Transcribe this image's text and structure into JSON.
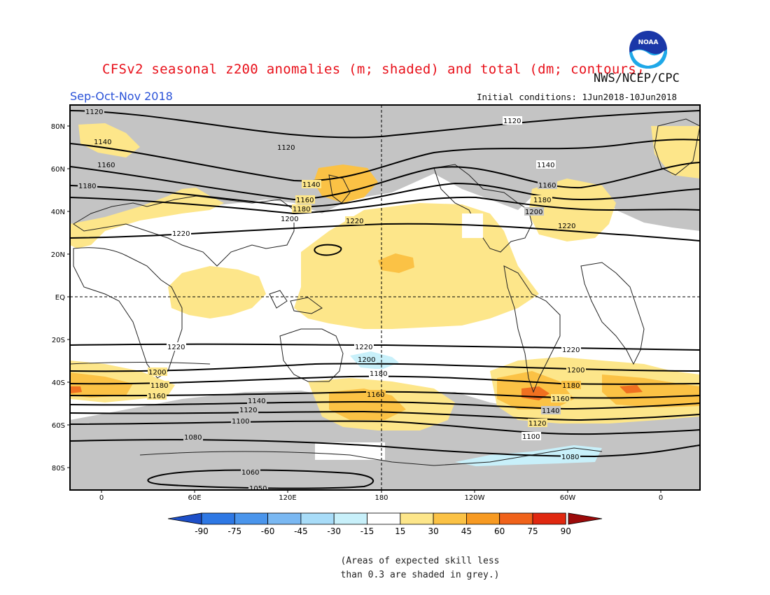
{
  "header": {
    "title": "CFSv2 seasonal z200 anomalies (m; shaded) and total (dm; contours)",
    "agency": "NWS/NCEP/CPC",
    "season": "Sep-Oct-Nov 2018",
    "initial_conditions": "Initial conditions: 1Jun2018-10Jun2018",
    "logo_text": "NOAA"
  },
  "axes": {
    "lat_labels": [
      "80N",
      "60N",
      "40N",
      "20N",
      "EQ",
      "20S",
      "40S",
      "60S",
      "80S"
    ],
    "lon_labels": [
      "0",
      "60E",
      "120E",
      "180",
      "120W",
      "60W",
      "0"
    ]
  },
  "contours": [
    {
      "label": "1120",
      "value_dm": 1120
    },
    {
      "label": "1140",
      "value_dm": 1140
    },
    {
      "label": "1160",
      "value_dm": 1160
    },
    {
      "label": "1180",
      "value_dm": 1180
    },
    {
      "label": "1200",
      "value_dm": 1200
    },
    {
      "label": "1220",
      "value_dm": 1220
    },
    {
      "label": "1100",
      "value_dm": 1100
    },
    {
      "label": "1080",
      "value_dm": 1080
    },
    {
      "label": "1060",
      "value_dm": 1060
    },
    {
      "label": "1050",
      "value_dm": 1050
    }
  ],
  "colorbar": {
    "ticks": [
      "-90",
      "-75",
      "-60",
      "-45",
      "-30",
      "-15",
      "15",
      "30",
      "45",
      "60",
      "75",
      "90"
    ],
    "colors": [
      "#1e5fd8",
      "#2e78e4",
      "#4a95ec",
      "#7ab8f2",
      "#a8dcf8",
      "#c8f0fa",
      "#ffffff",
      "#fde68a",
      "#fbc245",
      "#f79a22",
      "#f0621a",
      "#e02810",
      "#b50c0c"
    ],
    "low_end_color": "#1d4fc8",
    "high_end_color": "#9c0a0a"
  },
  "colors": {
    "skill_mask_grey": "#c4c4c4",
    "anomaly_15_30": "#fde68a",
    "anomaly_30_45": "#fbc245",
    "anomaly_45_60": "#f79a22",
    "anomaly_60_75": "#f0621a",
    "negative_anomaly": "#c8f0fa"
  },
  "note": {
    "line1": "(Areas of expected skill less",
    "line2": "than 0.3 are shaded in grey.)"
  }
}
